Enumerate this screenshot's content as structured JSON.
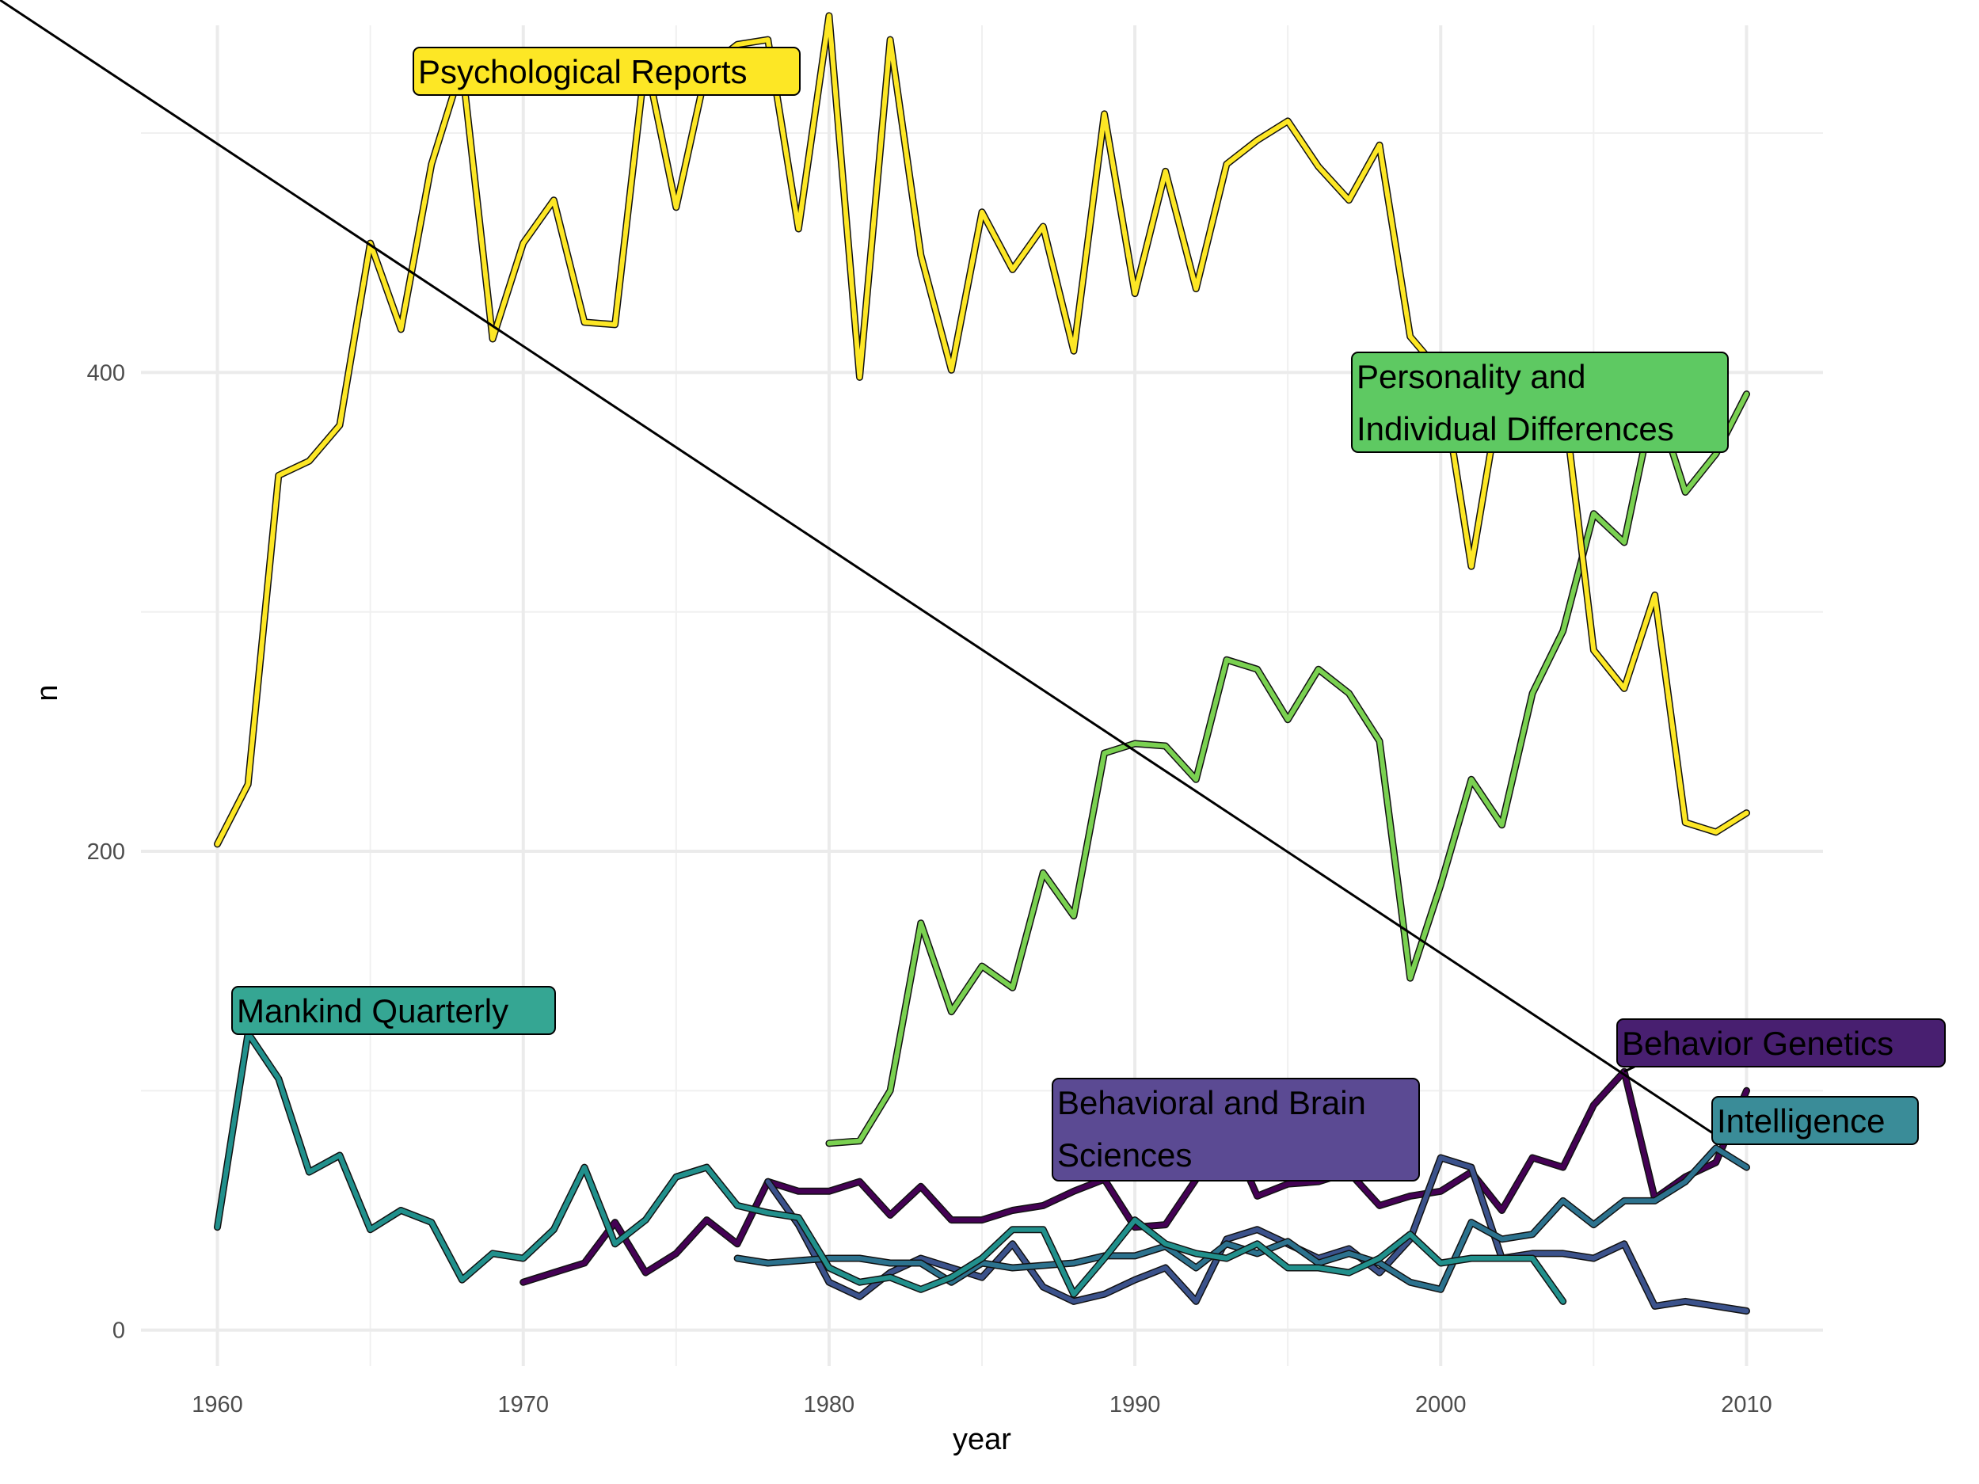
{
  "chart_data": {
    "type": "line",
    "title": "",
    "xlabel": "year",
    "ylabel": "n",
    "xlim": [
      1957.5,
      2012.5
    ],
    "ylim": [
      -15,
      545
    ],
    "x_ticks": [
      1960,
      1970,
      1980,
      1990,
      2000,
      2010
    ],
    "y_ticks": [
      0,
      200,
      400
    ],
    "grid": true,
    "legend": "none",
    "series": [
      {
        "name": "Behavior Genetics",
        "color": "#440154",
        "x": [
          1970,
          1971,
          1972,
          1973,
          1974,
          1975,
          1976,
          1977,
          1978,
          1979,
          1980,
          1981,
          1982,
          1983,
          1984,
          1985,
          1986,
          1987,
          1988,
          1989,
          1990,
          1991,
          1992,
          1993,
          1994,
          1995,
          1996,
          1997,
          1998,
          1999,
          2000,
          2001,
          2002,
          2003,
          2004,
          2005,
          2006,
          2007,
          2008,
          2009,
          2010
        ],
        "y": [
          20,
          24,
          28,
          45,
          24,
          32,
          46,
          36,
          62,
          58,
          58,
          62,
          48,
          60,
          46,
          46,
          50,
          52,
          58,
          63,
          43,
          44,
          63,
          85,
          56,
          61,
          62,
          66,
          52,
          56,
          58,
          66,
          50,
          72,
          68,
          94,
          108,
          55,
          64,
          70,
          100
        ]
      },
      {
        "name": "Behavioral and Brain Sciences",
        "color": "#3b528b",
        "x": [
          1978,
          1979,
          1980,
          1981,
          1982,
          1983,
          1984,
          1985,
          1986,
          1987,
          1988,
          1989,
          1990,
          1991,
          1992,
          1993,
          1994,
          1995,
          1996,
          1997,
          1998,
          1999,
          2000,
          2001,
          2002,
          2003,
          2004,
          2005,
          2006,
          2007,
          2008,
          2009,
          2010
        ],
        "y": [
          62,
          44,
          20,
          14,
          24,
          30,
          26,
          22,
          36,
          18,
          12,
          15,
          21,
          26,
          12,
          38,
          42,
          36,
          30,
          34,
          24,
          38,
          72,
          68,
          30,
          32,
          32,
          30,
          36,
          10,
          12,
          10,
          8
        ]
      },
      {
        "name": "Intelligence",
        "color": "#2c728e",
        "x": [
          1977,
          1978,
          1979,
          1980,
          1981,
          1982,
          1983,
          1984,
          1985,
          1986,
          1987,
          1988,
          1989,
          1990,
          1991,
          1992,
          1993,
          1994,
          1995,
          1996,
          1997,
          1998,
          1999,
          2000,
          2001,
          2002,
          2003,
          2004,
          2005,
          2006,
          2007,
          2008,
          2009,
          2010
        ],
        "y": [
          30,
          28,
          29,
          30,
          30,
          28,
          28,
          20,
          28,
          26,
          27,
          28,
          31,
          31,
          35,
          26,
          36,
          32,
          37,
          28,
          32,
          28,
          20,
          17,
          45,
          38,
          40,
          54,
          44,
          54,
          54,
          62,
          76,
          68
        ]
      },
      {
        "name": "Mankind Quarterly",
        "color": "#21908c",
        "x": [
          1960,
          1961,
          1962,
          1963,
          1964,
          1965,
          1966,
          1967,
          1968,
          1969,
          1970,
          1971,
          1972,
          1973,
          1974,
          1975,
          1976,
          1977,
          1978,
          1979,
          1980,
          1981,
          1982,
          1983,
          1984,
          1985,
          1986,
          1987,
          1988,
          1989,
          1990,
          1991,
          1992,
          1993,
          1994,
          1995,
          1996,
          1997,
          1998,
          1999,
          2000,
          2001,
          2002,
          2003,
          2004
        ],
        "y": [
          43,
          124,
          105,
          66,
          73,
          42,
          50,
          45,
          21,
          32,
          30,
          42,
          68,
          36,
          46,
          64,
          68,
          52,
          49,
          47,
          26,
          20,
          22,
          17,
          22,
          30,
          42,
          42,
          15,
          30,
          46,
          36,
          32,
          30,
          36,
          26,
          26,
          24,
          30,
          40,
          28,
          30,
          30,
          30,
          12
        ]
      },
      {
        "name": "Personality and Individual Differences",
        "color": "#7ad151",
        "x": [
          1980,
          1981,
          1982,
          1983,
          1984,
          1985,
          1986,
          1987,
          1988,
          1989,
          1990,
          1991,
          1992,
          1993,
          1994,
          1995,
          1996,
          1997,
          1998,
          1999,
          2000,
          2001,
          2002,
          2003,
          2004,
          2005,
          2006,
          2007,
          2008,
          2009,
          2010
        ],
        "y": [
          78,
          79,
          100,
          170,
          133,
          152,
          143,
          191,
          173,
          241,
          245,
          244,
          230,
          280,
          276,
          255,
          276,
          266,
          246,
          147,
          186,
          230,
          211,
          266,
          292,
          341,
          329,
          390,
          350,
          366,
          391
        ]
      },
      {
        "name": "Psychological Reports",
        "color": "#fde725",
        "x": [
          1960,
          1961,
          1962,
          1963,
          1964,
          1965,
          1966,
          1967,
          1968,
          1969,
          1970,
          1971,
          1972,
          1973,
          1974,
          1975,
          1976,
          1977,
          1978,
          1979,
          1980,
          1981,
          1982,
          1983,
          1984,
          1985,
          1986,
          1987,
          1988,
          1989,
          1990,
          1991,
          1992,
          1993,
          1994,
          1995,
          1996,
          1997,
          1998,
          1999,
          2000,
          2001,
          2002,
          2003,
          2004,
          2005,
          2006,
          2007,
          2008,
          2009,
          2010
        ],
        "y": [
          203,
          228,
          357,
          363,
          378,
          454,
          418,
          487,
          528,
          414,
          454,
          472,
          421,
          420,
          531,
          469,
          527,
          537,
          539,
          460,
          549,
          398,
          539,
          449,
          401,
          467,
          443,
          461,
          409,
          508,
          433,
          484,
          435,
          487,
          497,
          505,
          486,
          472,
          495,
          415,
          400,
          319,
          395,
          401,
          391,
          284,
          268,
          307,
          212,
          208,
          216
        ]
      }
    ],
    "annotations": [
      {
        "text": "Psychological Reports",
        "series": "Psychological Reports",
        "fill": "#fde725",
        "text_color": "#000000",
        "line_color": "#000000"
      },
      {
        "text": "Personality and\nIndividual Differences",
        "series": "Personality and Individual Differences",
        "fill": "#5ec962",
        "text_color": "#000000",
        "line_color": "#000000"
      },
      {
        "text": "Mankind Quarterly",
        "series": "Mankind Quarterly",
        "fill": "#35a693",
        "text_color": "#000000",
        "line_color": "#000000"
      },
      {
        "text": "Behavior Genetics",
        "series": "Behavior Genetics",
        "fill": "#481f70",
        "text_color": "#000000",
        "line_color": "#000000"
      },
      {
        "text": "Behavioral and Brain\nSciences",
        "series": "Behavioral and Brain Sciences",
        "fill": "#5b4a93",
        "text_color": "#000000",
        "line_color": "#000000"
      },
      {
        "text": "Intelligence",
        "series": "Intelligence",
        "fill": "#3a8c98",
        "text_color": "#000000",
        "line_color": "#000000"
      }
    ]
  }
}
